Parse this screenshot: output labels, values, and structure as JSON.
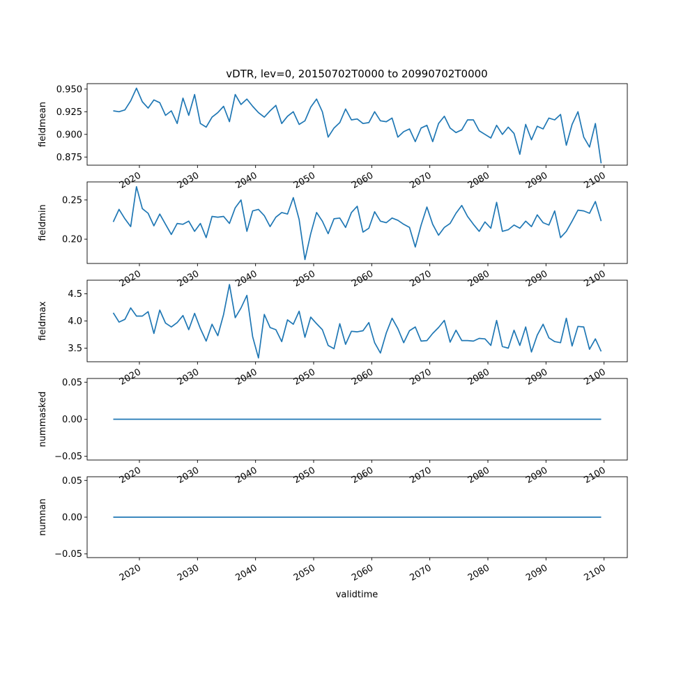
{
  "chart_data": {
    "type": "line",
    "title": "vDTR, lev=0, 20150702T0000 to 20990702T0000",
    "xlabel": "validtime",
    "x_start_year": 2015,
    "x_end_year": 2099,
    "xlim": [
      2011,
      2104
    ],
    "xticks": [
      2020,
      2030,
      2040,
      2050,
      2060,
      2070,
      2080,
      2090,
      2100
    ],
    "color": "#1f77b4",
    "subplots": [
      {
        "ylabel": "fieldmean",
        "ylim": [
          0.866,
          0.956
        ],
        "yticks": [
          0.875,
          0.9,
          0.925,
          0.95
        ],
        "ytick_labels": [
          "0.875",
          "0.900",
          "0.925",
          "0.950"
        ],
        "values": [
          0.926,
          0.925,
          0.927,
          0.937,
          0.951,
          0.936,
          0.929,
          0.938,
          0.935,
          0.921,
          0.926,
          0.912,
          0.94,
          0.921,
          0.944,
          0.912,
          0.908,
          0.919,
          0.924,
          0.931,
          0.914,
          0.944,
          0.933,
          0.939,
          0.931,
          0.924,
          0.919,
          0.926,
          0.932,
          0.912,
          0.92,
          0.925,
          0.911,
          0.915,
          0.93,
          0.939,
          0.925,
          0.897,
          0.907,
          0.913,
          0.928,
          0.916,
          0.917,
          0.912,
          0.913,
          0.925,
          0.915,
          0.914,
          0.918,
          0.897,
          0.903,
          0.906,
          0.892,
          0.907,
          0.91,
          0.892,
          0.912,
          0.92,
          0.907,
          0.902,
          0.905,
          0.916,
          0.916,
          0.904,
          0.9,
          0.896,
          0.91,
          0.9,
          0.908,
          0.901,
          0.878,
          0.911,
          0.894,
          0.909,
          0.906,
          0.918,
          0.916,
          0.922,
          0.888,
          0.911,
          0.925,
          0.897,
          0.886,
          0.912,
          0.868
        ]
      },
      {
        "ylabel": "fieldmin",
        "ylim": [
          0.169,
          0.273
        ],
        "yticks": [
          0.2,
          0.25
        ],
        "ytick_labels": [
          "0.20",
          "0.25"
        ],
        "values": [
          0.222,
          0.238,
          0.226,
          0.216,
          0.267,
          0.239,
          0.233,
          0.217,
          0.232,
          0.219,
          0.206,
          0.22,
          0.219,
          0.223,
          0.21,
          0.22,
          0.202,
          0.229,
          0.228,
          0.229,
          0.22,
          0.24,
          0.25,
          0.21,
          0.236,
          0.238,
          0.23,
          0.216,
          0.228,
          0.234,
          0.232,
          0.253,
          0.225,
          0.174,
          0.207,
          0.234,
          0.223,
          0.207,
          0.226,
          0.227,
          0.215,
          0.234,
          0.242,
          0.209,
          0.214,
          0.235,
          0.223,
          0.221,
          0.227,
          0.224,
          0.219,
          0.215,
          0.19,
          0.218,
          0.241,
          0.219,
          0.205,
          0.215,
          0.22,
          0.233,
          0.243,
          0.229,
          0.219,
          0.21,
          0.222,
          0.214,
          0.247,
          0.21,
          0.212,
          0.218,
          0.214,
          0.223,
          0.216,
          0.231,
          0.221,
          0.218,
          0.236,
          0.202,
          0.21,
          0.223,
          0.237,
          0.236,
          0.233,
          0.248,
          0.223
        ]
      },
      {
        "ylabel": "fieldmax",
        "ylim": [
          3.25,
          4.75
        ],
        "yticks": [
          3.5,
          4.0,
          4.5
        ],
        "ytick_labels": [
          "3.5",
          "4.0",
          "4.5"
        ],
        "values": [
          4.15,
          3.98,
          4.03,
          4.24,
          4.09,
          4.09,
          4.17,
          3.77,
          4.2,
          3.96,
          3.89,
          3.97,
          4.1,
          3.84,
          4.14,
          3.86,
          3.63,
          3.94,
          3.73,
          4.12,
          4.67,
          4.06,
          4.24,
          4.47,
          3.71,
          3.32,
          4.12,
          3.88,
          3.84,
          3.62,
          4.02,
          3.94,
          4.18,
          3.7,
          4.07,
          3.95,
          3.84,
          3.55,
          3.49,
          3.95,
          3.57,
          3.81,
          3.8,
          3.82,
          3.97,
          3.6,
          3.41,
          3.78,
          4.05,
          3.86,
          3.6,
          3.82,
          3.89,
          3.63,
          3.64,
          3.77,
          3.88,
          4.01,
          3.61,
          3.83,
          3.64,
          3.64,
          3.63,
          3.68,
          3.67,
          3.55,
          4.01,
          3.53,
          3.5,
          3.83,
          3.55,
          3.89,
          3.43,
          3.74,
          3.94,
          3.69,
          3.62,
          3.6,
          4.05,
          3.54,
          3.9,
          3.89,
          3.48,
          3.67,
          3.44
        ]
      },
      {
        "ylabel": "nummasked",
        "ylim": [
          -0.055,
          0.055
        ],
        "yticks": [
          -0.05,
          0.0,
          0.05
        ],
        "ytick_labels": [
          "−0.05",
          "0.00",
          "0.05"
        ],
        "constant_value": 0
      },
      {
        "ylabel": "numnan",
        "ylim": [
          -0.055,
          0.055
        ],
        "yticks": [
          -0.05,
          0.0,
          0.05
        ],
        "ytick_labels": [
          "−0.05",
          "0.00",
          "0.05"
        ],
        "constant_value": 0
      }
    ]
  }
}
